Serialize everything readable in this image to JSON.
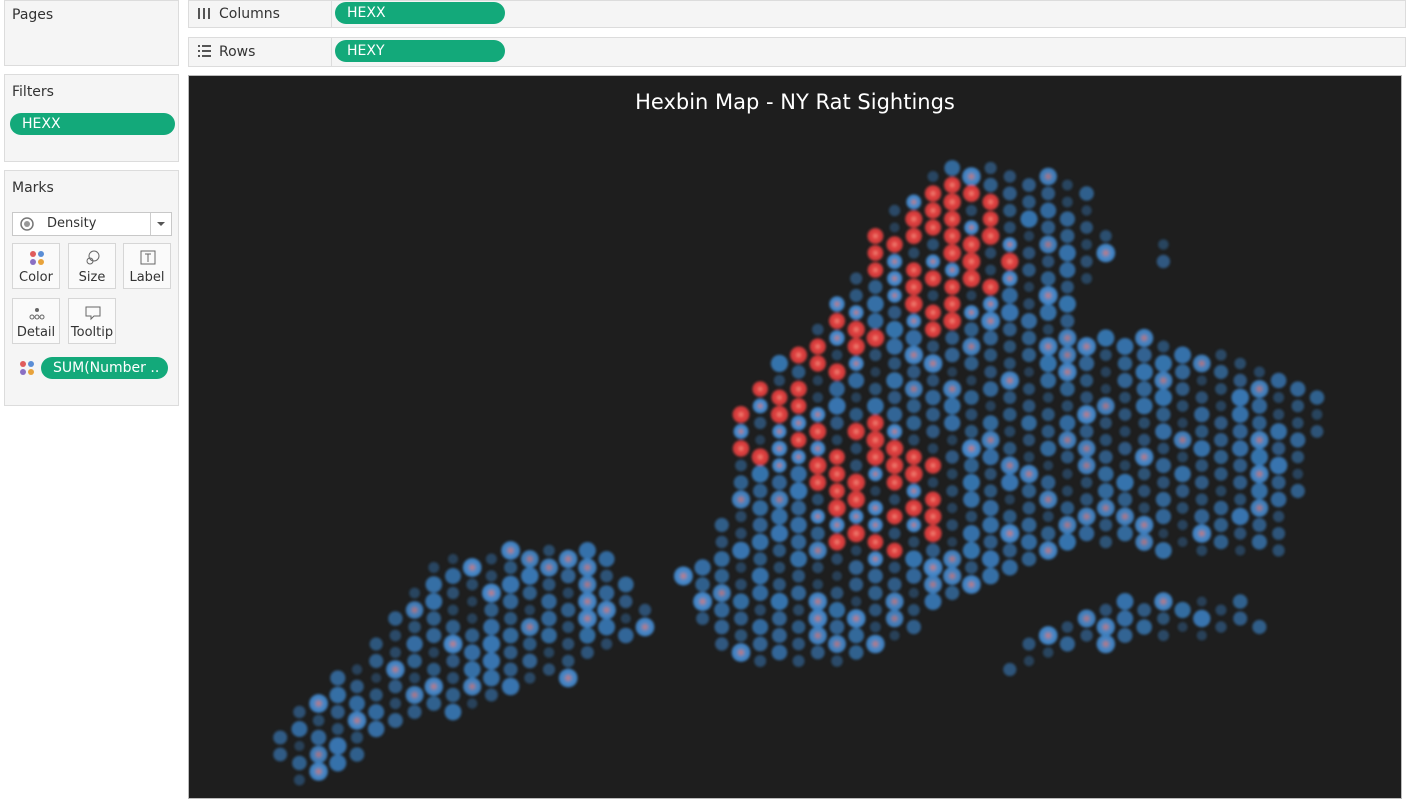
{
  "shelves": {
    "pages_label": "Pages",
    "columns_label": "Columns",
    "columns_pill": "HEXX",
    "rows_label": "Rows",
    "rows_pill": "HEXY"
  },
  "filters": {
    "label": "Filters",
    "pills": [
      "HEXX"
    ]
  },
  "marks": {
    "label": "Marks",
    "mark_type": "Density",
    "buttons": [
      "Color",
      "Size",
      "Label",
      "Detail",
      "Tooltip"
    ],
    "pills": [
      "SUM(Number .."
    ]
  },
  "view": {
    "title": "Hexbin Map - NY Rat Sightings"
  }
}
